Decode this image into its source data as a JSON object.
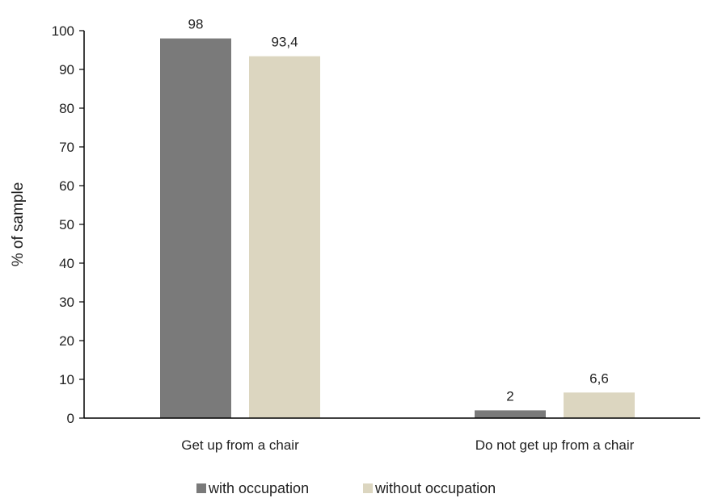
{
  "chart_data": {
    "type": "bar",
    "categories": [
      "Get up from a chair",
      "Do not get up from a chair"
    ],
    "series": [
      {
        "name": "with occupation",
        "values": [
          98,
          2
        ],
        "labels": [
          "98",
          "2"
        ],
        "color": "#7a7a7a"
      },
      {
        "name": "without occupation",
        "values": [
          93.4,
          6.6
        ],
        "labels": [
          "93,4",
          "6,6"
        ],
        "color": "#dcd6c0"
      }
    ],
    "title": "",
    "xlabel": "",
    "ylabel": "% of sample",
    "ylim": [
      0,
      100
    ],
    "yticks": [
      0,
      10,
      20,
      30,
      40,
      50,
      60,
      70,
      80,
      90,
      100
    ],
    "grid": false,
    "legend_position": "bottom"
  }
}
